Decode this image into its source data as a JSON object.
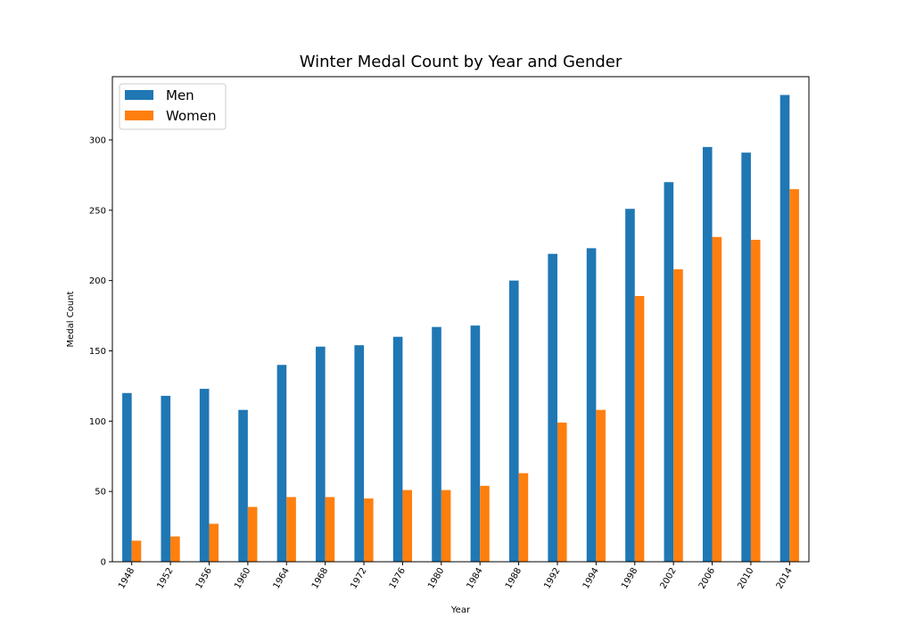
{
  "chart_data": {
    "type": "bar",
    "title": "Winter Medal Count by Year and Gender",
    "xlabel": "Year",
    "ylabel": "Medal Count",
    "categories": [
      "1948",
      "1952",
      "1956",
      "1960",
      "1964",
      "1968",
      "1972",
      "1976",
      "1980",
      "1984",
      "1988",
      "1992",
      "1994",
      "1998",
      "2002",
      "2006",
      "2010",
      "2014"
    ],
    "series": [
      {
        "name": "Men",
        "color": "#1f77b4",
        "values": [
          120,
          118,
          123,
          108,
          140,
          153,
          154,
          160,
          167,
          168,
          200,
          219,
          223,
          251,
          270,
          295,
          291,
          332
        ]
      },
      {
        "name": "Women",
        "color": "#ff7f0e",
        "values": [
          15,
          18,
          27,
          39,
          46,
          46,
          45,
          51,
          51,
          54,
          63,
          99,
          108,
          189,
          208,
          231,
          229,
          265
        ]
      }
    ],
    "ylim": [
      0,
      345
    ],
    "yticks": [
      0,
      50,
      100,
      150,
      200,
      250,
      300
    ],
    "grid": false,
    "legend_position": "top-left"
  }
}
